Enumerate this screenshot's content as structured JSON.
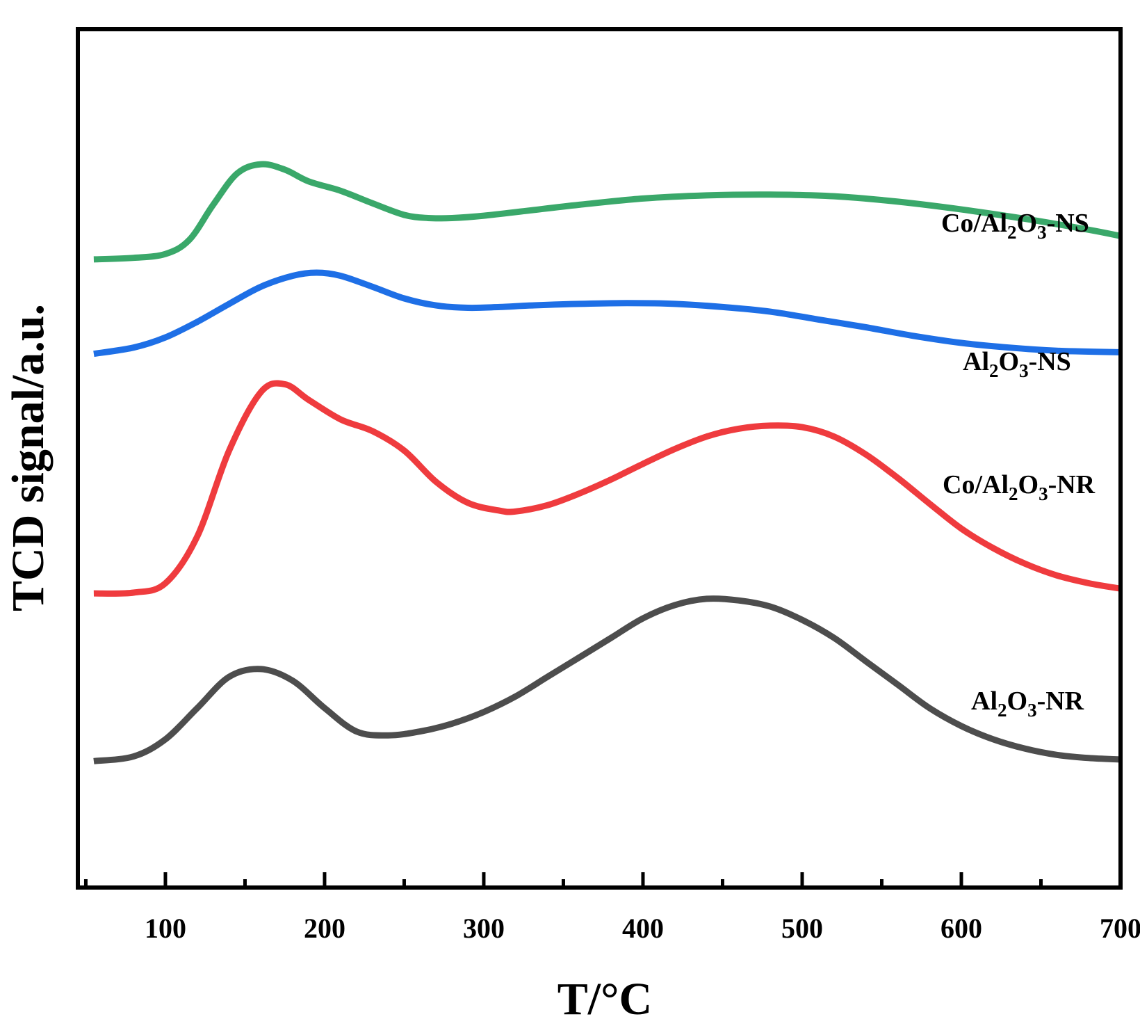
{
  "chart_data": {
    "type": "line",
    "xlabel": "T/°C",
    "ylabel": "TCD signal/a.u.",
    "xlim": [
      45,
      700
    ],
    "ylim": [
      -0.1,
      1.0
    ],
    "x_ticks": [
      100,
      200,
      300,
      400,
      500,
      600,
      700
    ],
    "x_tick_labels": [
      "100",
      "200",
      "300",
      "400",
      "500",
      "600",
      "700"
    ],
    "y_ticks_visible": false,
    "grid": false,
    "legend": "inline labels at right",
    "series": [
      {
        "key": "al2o3_nr",
        "label_parts": [
          [
            "Al",
            ""
          ],
          [
            "2",
            "sub"
          ],
          [
            "O",
            ""
          ],
          [
            "3",
            "sub"
          ],
          [
            "-NR",
            ""
          ]
        ],
        "color": "#4d4d4d",
        "x": [
          55,
          80,
          100,
          120,
          140,
          160,
          180,
          200,
          220,
          240,
          260,
          280,
          300,
          320,
          340,
          360,
          380,
          400,
          420,
          440,
          460,
          480,
          500,
          520,
          540,
          560,
          580,
          600,
          620,
          640,
          660,
          680,
          700
        ],
        "y": [
          0.062,
          0.068,
          0.09,
          0.13,
          0.17,
          0.18,
          0.165,
          0.13,
          0.1,
          0.095,
          0.1,
          0.11,
          0.125,
          0.145,
          0.17,
          0.195,
          0.22,
          0.245,
          0.262,
          0.27,
          0.268,
          0.26,
          0.243,
          0.22,
          0.19,
          0.16,
          0.13,
          0.107,
          0.09,
          0.078,
          0.07,
          0.066,
          0.064
        ]
      },
      {
        "key": "co_al2o3_nr",
        "label_parts": [
          [
            "Co/Al",
            ""
          ],
          [
            "2",
            "sub"
          ],
          [
            "O",
            ""
          ],
          [
            "3",
            "sub"
          ],
          [
            "-NR",
            ""
          ]
        ],
        "color": "#ef3b3e",
        "x": [
          55,
          80,
          100,
          120,
          140,
          160,
          175,
          190,
          210,
          230,
          250,
          270,
          290,
          310,
          320,
          340,
          360,
          380,
          400,
          420,
          440,
          460,
          480,
          500,
          520,
          540,
          560,
          580,
          600,
          620,
          640,
          660,
          680,
          700
        ],
        "y": [
          0.277,
          0.278,
          0.29,
          0.35,
          0.46,
          0.535,
          0.545,
          0.525,
          0.5,
          0.485,
          0.46,
          0.42,
          0.393,
          0.383,
          0.382,
          0.39,
          0.405,
          0.423,
          0.443,
          0.462,
          0.478,
          0.488,
          0.492,
          0.49,
          0.478,
          0.455,
          0.425,
          0.392,
          0.36,
          0.335,
          0.315,
          0.3,
          0.29,
          0.283
        ]
      },
      {
        "key": "al2o3_ns",
        "label_parts": [
          [
            "Al",
            ""
          ],
          [
            "2",
            "sub"
          ],
          [
            "O",
            ""
          ],
          [
            "3",
            "sub"
          ],
          [
            "-NS",
            ""
          ]
        ],
        "color": "#1e6fe6",
        "x": [
          55,
          80,
          100,
          120,
          140,
          160,
          180,
          195,
          210,
          230,
          250,
          270,
          290,
          310,
          330,
          360,
          390,
          420,
          450,
          480,
          510,
          540,
          570,
          600,
          630,
          660,
          700
        ],
        "y": [
          0.584,
          0.592,
          0.605,
          0.625,
          0.648,
          0.67,
          0.684,
          0.688,
          0.684,
          0.67,
          0.655,
          0.646,
          0.643,
          0.644,
          0.646,
          0.648,
          0.649,
          0.648,
          0.644,
          0.638,
          0.628,
          0.618,
          0.607,
          0.598,
          0.592,
          0.588,
          0.586
        ]
      },
      {
        "key": "co_al2o3_ns",
        "label_parts": [
          [
            "Co/Al",
            ""
          ],
          [
            "2",
            "sub"
          ],
          [
            "O",
            ""
          ],
          [
            "3",
            "sub"
          ],
          [
            "-NS",
            ""
          ]
        ],
        "color": "#3aa86a",
        "x": [
          55,
          80,
          100,
          115,
          130,
          145,
          160,
          175,
          190,
          210,
          230,
          250,
          265,
          280,
          300,
          330,
          360,
          400,
          440,
          480,
          520,
          560,
          600,
          640,
          680,
          700
        ],
        "y": [
          0.705,
          0.707,
          0.712,
          0.73,
          0.775,
          0.815,
          0.827,
          0.82,
          0.805,
          0.793,
          0.777,
          0.762,
          0.758,
          0.758,
          0.761,
          0.768,
          0.775,
          0.783,
          0.787,
          0.788,
          0.786,
          0.779,
          0.769,
          0.757,
          0.743,
          0.735
        ]
      }
    ]
  }
}
